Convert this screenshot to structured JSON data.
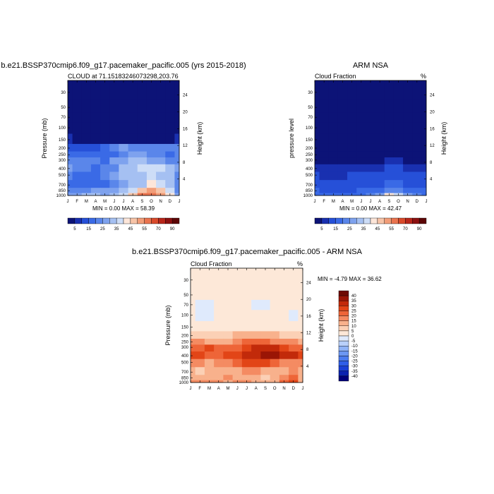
{
  "chart_data": [
    {
      "type": "heatmap",
      "title": "b.e21.BSSP370cmip6.f09_g17.pacemaker_pacific.005 (yrs 2015-2018)",
      "subtitle": "CLOUD at 71.15183246073298,203.76",
      "ylabel": "Pressure (mb)",
      "ylabel_right": "Height (km)",
      "stats": "MIN =   0.00 MAX =  58.39",
      "x_ticks": [
        "J",
        "F",
        "M",
        "A",
        "M",
        "J",
        "J",
        "A",
        "S",
        "O",
        "N",
        "D",
        "J"
      ],
      "y_ticks": [
        30,
        50,
        70,
        100,
        150,
        200,
        250,
        300,
        400,
        500,
        700,
        850,
        1000
      ],
      "y_scale": "log",
      "ylim": [
        20,
        1000
      ],
      "height_ticks_km": [
        4,
        8,
        12,
        16,
        20,
        24
      ],
      "legend_levels": [
        5,
        10,
        15,
        20,
        25,
        30,
        35,
        40,
        45,
        50,
        55,
        60,
        70,
        80,
        90
      ],
      "legend_labels": [
        "5",
        "15",
        "25",
        "35",
        "45",
        "55",
        "70",
        "90"
      ],
      "values": [
        [
          0,
          0,
          0,
          0,
          0,
          0,
          0,
          0,
          0,
          0,
          0,
          0,
          0
        ],
        [
          0,
          0,
          0,
          0,
          0,
          0,
          0,
          0,
          0,
          0,
          0,
          0,
          0
        ],
        [
          0,
          0,
          0,
          0,
          0,
          0,
          0,
          0,
          0,
          0,
          0,
          0,
          0
        ],
        [
          0,
          0,
          0,
          0,
          0,
          0,
          0,
          0,
          0,
          0,
          0,
          0,
          0
        ],
        [
          7,
          3,
          2,
          3,
          2,
          2,
          2,
          2,
          3,
          3,
          4,
          3,
          6
        ],
        [
          14,
          14,
          14,
          14,
          15,
          22,
          25,
          24,
          24,
          23,
          21,
          20,
          23
        ],
        [
          18,
          17,
          17,
          17,
          16,
          19,
          24,
          25,
          25,
          22,
          21,
          19,
          20
        ],
        [
          23,
          22,
          22,
          21,
          18,
          25,
          28,
          30,
          31,
          28,
          26,
          24,
          24
        ],
        [
          27,
          22,
          20,
          19,
          22,
          24,
          30,
          34,
          36,
          38,
          36,
          32,
          28
        ],
        [
          21,
          18,
          17,
          18,
          20,
          25,
          31,
          33,
          34,
          38,
          34,
          30,
          22
        ],
        [
          17,
          16,
          16,
          17,
          18,
          20,
          25,
          30,
          34,
          40,
          38,
          30,
          22
        ],
        [
          20,
          22,
          24,
          26,
          26,
          27,
          33,
          38,
          46,
          50,
          45,
          35,
          20
        ],
        [
          25,
          28,
          30,
          30,
          28,
          30,
          36,
          45,
          55,
          58,
          50,
          40,
          26
        ]
      ]
    },
    {
      "type": "heatmap",
      "title": "ARM NSA",
      "subtitle": "Cloud Fraction",
      "unit": "%",
      "ylabel": "pressure level",
      "ylabel_right": "Height (km)",
      "stats": "MIN =   0.00 MAX =  42.47",
      "x_ticks": [
        "J",
        "F",
        "M",
        "A",
        "M",
        "J",
        "J",
        "A",
        "S",
        "O",
        "N",
        "D",
        "J"
      ],
      "y_ticks": [
        30,
        50,
        70,
        100,
        150,
        200,
        250,
        300,
        400,
        500,
        700,
        850,
        1000
      ],
      "y_scale": "log",
      "ylim": [
        20,
        1000
      ],
      "height_ticks_km": [
        4,
        8,
        12,
        16,
        20,
        24
      ],
      "legend_levels": [
        5,
        10,
        15,
        20,
        25,
        30,
        35,
        40,
        45,
        50,
        55,
        60,
        70,
        80,
        90
      ],
      "legend_labels": [
        "5",
        "15",
        "25",
        "35",
        "45",
        "55",
        "70",
        "90"
      ],
      "values": [
        [
          0,
          0,
          0,
          0,
          0,
          0,
          0,
          0,
          0,
          0,
          0,
          0,
          0
        ],
        [
          0,
          0,
          0,
          0,
          0,
          0,
          0,
          0,
          0,
          0,
          0,
          0,
          0
        ],
        [
          0,
          0,
          0,
          0,
          0,
          0,
          0,
          0,
          0,
          0,
          0,
          0,
          0
        ],
        [
          0,
          0,
          0,
          0,
          0,
          0,
          0,
          0,
          0,
          0,
          0,
          0,
          0
        ],
        [
          0,
          0,
          0,
          0,
          0,
          0,
          0,
          0,
          0,
          0,
          0,
          0,
          0
        ],
        [
          1,
          1,
          1,
          1,
          1,
          1,
          1,
          1,
          1,
          1,
          1,
          1,
          1
        ],
        [
          2,
          2,
          2,
          2,
          2,
          2,
          2,
          2,
          2,
          2,
          2,
          2,
          2
        ],
        [
          4,
          3,
          3,
          3,
          3,
          4,
          4,
          4,
          5,
          5,
          4,
          4,
          4
        ],
        [
          8,
          6,
          5,
          5,
          7,
          8,
          9,
          9,
          10,
          10,
          9,
          8,
          8
        ],
        [
          11,
          9,
          8,
          8,
          10,
          11,
          12,
          12,
          13,
          13,
          12,
          11,
          11
        ],
        [
          13,
          11,
          10,
          11,
          12,
          13,
          14,
          14,
          15,
          15,
          14,
          13,
          13
        ],
        [
          16,
          14,
          13,
          14,
          14,
          15,
          16,
          18,
          22,
          20,
          18,
          16,
          16
        ],
        [
          18,
          16,
          15,
          16,
          16,
          17,
          20,
          25,
          40,
          35,
          25,
          20,
          18
        ]
      ]
    },
    {
      "type": "heatmap",
      "title": "b.e21.BSSP370cmip6.f09_g17.pacemaker_pacific.005 - ARM NSA",
      "subtitle": "Cloud Fraction",
      "unit": "%",
      "ylabel": "Pressure (mb)",
      "ylabel_right": "Height (km)",
      "stats": "MIN =  -4.79 MAX =  36.62",
      "x_ticks": [
        "J",
        "F",
        "M",
        "A",
        "M",
        "J",
        "J",
        "A",
        "S",
        "O",
        "N",
        "D",
        "J"
      ],
      "y_ticks": [
        30,
        50,
        70,
        100,
        150,
        200,
        250,
        300,
        400,
        500,
        700,
        850,
        1000
      ],
      "y_scale": "log",
      "ylim": [
        20,
        1000
      ],
      "height_ticks_km": [
        4,
        8,
        12,
        16,
        20,
        24
      ],
      "legend_levels": [
        -40,
        -35,
        -30,
        -25,
        -20,
        -15,
        -10,
        -5,
        0,
        5,
        10,
        15,
        20,
        25,
        30,
        35,
        40
      ],
      "legend_labels": [
        "40",
        "35",
        "30",
        "25",
        "20",
        "15",
        "10",
        "5",
        "0",
        "-5",
        "-10",
        "-15",
        "-20",
        "-25",
        "-30",
        "-35",
        "-40"
      ],
      "values": [
        [
          2,
          2,
          2,
          2,
          2,
          2,
          2,
          2,
          2,
          2,
          2,
          2,
          2
        ],
        [
          2,
          2,
          2,
          2,
          2,
          2,
          2,
          2,
          2,
          2,
          2,
          2,
          2
        ],
        [
          1,
          -1,
          -1,
          0,
          1,
          1,
          1,
          -1,
          -1,
          0,
          1,
          1,
          1
        ],
        [
          1,
          -1,
          -1,
          0,
          1,
          1,
          2,
          1,
          0,
          0,
          1,
          -1,
          1
        ],
        [
          2,
          2,
          1,
          1,
          1,
          2,
          2,
          2,
          2,
          2,
          2,
          1,
          3
        ],
        [
          6,
          7,
          8,
          7,
          8,
          10,
          11,
          12,
          11,
          10,
          9,
          8,
          8
        ],
        [
          16,
          15,
          13,
          12,
          13,
          15,
          20,
          22,
          22,
          19,
          18,
          18,
          14
        ],
        [
          20,
          22,
          25,
          24,
          22,
          23,
          28,
          32,
          33,
          30,
          28,
          24,
          20
        ],
        [
          26,
          27,
          24,
          22,
          25,
          27,
          30,
          33,
          35,
          36,
          34,
          32,
          25
        ],
        [
          18,
          16,
          14,
          15,
          18,
          22,
          25,
          28,
          26,
          22,
          18,
          15,
          17
        ],
        [
          12,
          9,
          10,
          12,
          12,
          14,
          16,
          15,
          13,
          10,
          12,
          15,
          10
        ],
        [
          10,
          11,
          13,
          14,
          15,
          12,
          14,
          10,
          8,
          12,
          15,
          22,
          10
        ],
        [
          16,
          17,
          16,
          15,
          14,
          15,
          16,
          12,
          10,
          14,
          20,
          25,
          14
        ]
      ]
    }
  ]
}
